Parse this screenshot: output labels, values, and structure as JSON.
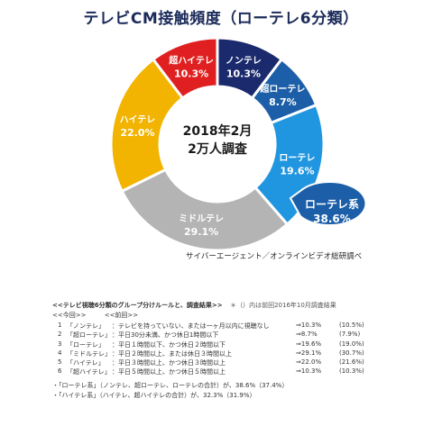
{
  "chart_data": {
    "type": "pie",
    "title": "テレビCM接触頻度（ローテレ6分類）",
    "center_label": [
      "2018年2月",
      "2万人調査"
    ],
    "slices": [
      {
        "name": "ノンテレ",
        "value": 10.3,
        "label": "10.3%",
        "color": "#1a2a6c"
      },
      {
        "name": "超ローテレ",
        "value": 8.7,
        "label": "8.7%",
        "color": "#1c5fa8"
      },
      {
        "name": "ローテレ",
        "value": 19.6,
        "label": "19.6%",
        "color": "#2196e0"
      },
      {
        "name": "ミドルテレ",
        "value": 29.1,
        "label": "29.1%",
        "color": "#b4b4b4"
      },
      {
        "name": "ハイテレ",
        "value": 22.0,
        "label": "22.0%",
        "color": "#f2b400"
      },
      {
        "name": "超ハイテレ",
        "value": 10.3,
        "label": "10.3%",
        "color": "#e02020"
      }
    ],
    "callout": {
      "name": "ローテレ系",
      "value": "38.6%",
      "color": "#1c5fa8"
    }
  },
  "source": "サイバーエージェント／オンラインビデオ総研調べ",
  "rules": {
    "heading": "<<テレビ視聴6分類のグループ分けルールと、調査結果>>",
    "note": "＊（）内は前回2016年10月調査結果",
    "sub_now": "<<今回>>",
    "sub_prev": "<<前回>>",
    "rows": [
      {
        "no": "1",
        "name": "「ノンテレ」",
        "desc": "：テレビを持っていない、または一ヶ月以内に視聴なし",
        "now": "⇒10.3%",
        "prev": "(10.5%)"
      },
      {
        "no": "2",
        "name": "「超ローテレ」",
        "desc": "：平日30分未満、かつ休日1時間以下",
        "now": "⇒8.7%",
        "prev": "(7.9%)"
      },
      {
        "no": "3",
        "name": "「ローテレ」",
        "desc": "：平日１時間以下、かつ休日２時間以下",
        "now": "⇒19.6%",
        "prev": "(19.0%)"
      },
      {
        "no": "4",
        "name": "「ミドルテレ」",
        "desc": "：平日２時間以上、または休日３時間以上",
        "now": "⇒29.1%",
        "prev": "(30.7%)"
      },
      {
        "no": "5",
        "name": "「ハイテレ」",
        "desc": "：平日３時間以上、かつ休日３時間以上",
        "now": "⇒22.0%",
        "prev": "(21.6%)"
      },
      {
        "no": "6",
        "name": "「超ハイテレ」",
        "desc": "：平日５時間以上、かつ休日５時間以上",
        "now": "⇒10.3%",
        "prev": "(10.3%)"
      }
    ],
    "summary": [
      "・「ローテレ系」（ノンテレ、超ローテレ、ローテレの合計）が、38.6%（37.4%）",
      "・「ハイテレ系」（ハイテレ、超ハイテレの合計）が、32.3%（31.9%）"
    ]
  }
}
